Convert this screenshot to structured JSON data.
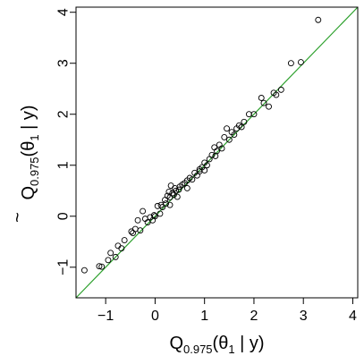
{
  "chart_data": {
    "type": "scatter",
    "title": "",
    "xlabel": {
      "base": "Q",
      "sub": "0.975",
      "rest": "(θ",
      "sub2": "1",
      "tail": " | y)"
    },
    "ylabel": {
      "base": "Q",
      "accent": "~",
      "sub": "0.975",
      "rest": "(θ",
      "sub2": "1",
      "tail": " | y)"
    },
    "xlim": [
      -1.6,
      4.1
    ],
    "ylim": [
      -1.6,
      4.1
    ],
    "xticks": [
      -1,
      0,
      1,
      2,
      3,
      4
    ],
    "yticks": [
      -1,
      0,
      1,
      2,
      3,
      4
    ],
    "xtick_labels": [
      "−1",
      "0",
      "1",
      "2",
      "3",
      "4"
    ],
    "ytick_labels": [
      "−1",
      "0",
      "1",
      "2",
      "3",
      "4"
    ],
    "reference_line": {
      "slope": 1,
      "intercept": 0,
      "color": "#2ca02c"
    },
    "point_color": "#000000",
    "points": [
      [
        -1.43,
        -1.06
      ],
      [
        -1.13,
        -0.98
      ],
      [
        -1.08,
        -0.99
      ],
      [
        -0.95,
        -0.86
      ],
      [
        -0.9,
        -0.72
      ],
      [
        -0.8,
        -0.8
      ],
      [
        -0.75,
        -0.58
      ],
      [
        -0.68,
        -0.63
      ],
      [
        -0.62,
        -0.47
      ],
      [
        -0.48,
        -0.3
      ],
      [
        -0.45,
        -0.33
      ],
      [
        -0.4,
        -0.25
      ],
      [
        -0.35,
        -0.08
      ],
      [
        -0.3,
        -0.28
      ],
      [
        -0.25,
        0.1
      ],
      [
        -0.2,
        -0.05
      ],
      [
        -0.15,
        -0.12
      ],
      [
        -0.1,
        -0.02
      ],
      [
        -0.05,
        -0.08
      ],
      [
        0.0,
        0.0
      ],
      [
        0.05,
        0.2
      ],
      [
        0.1,
        0.05
      ],
      [
        0.15,
        0.18
      ],
      [
        0.2,
        0.32
      ],
      [
        0.22,
        0.25
      ],
      [
        0.25,
        0.4
      ],
      [
        0.28,
        0.48
      ],
      [
        0.3,
        0.37
      ],
      [
        0.32,
        0.6
      ],
      [
        0.35,
        0.45
      ],
      [
        0.38,
        0.42
      ],
      [
        0.4,
        0.55
      ],
      [
        0.45,
        0.38
      ],
      [
        0.48,
        0.52
      ],
      [
        0.5,
        0.58
      ],
      [
        0.55,
        0.62
      ],
      [
        0.6,
        0.65
      ],
      [
        0.65,
        0.7
      ],
      [
        0.7,
        0.75
      ],
      [
        0.75,
        0.72
      ],
      [
        0.8,
        0.85
      ],
      [
        0.85,
        0.8
      ],
      [
        0.9,
        0.92
      ],
      [
        0.95,
        0.96
      ],
      [
        1.0,
        1.05
      ],
      [
        1.05,
        1.0
      ],
      [
        1.1,
        1.12
      ],
      [
        1.15,
        1.2
      ],
      [
        1.2,
        1.35
      ],
      [
        1.25,
        1.28
      ],
      [
        1.3,
        1.4
      ],
      [
        1.35,
        1.33
      ],
      [
        1.4,
        1.55
      ],
      [
        1.45,
        1.72
      ],
      [
        1.5,
        1.5
      ],
      [
        1.55,
        1.65
      ],
      [
        1.6,
        1.6
      ],
      [
        1.65,
        1.72
      ],
      [
        1.7,
        1.78
      ],
      [
        1.75,
        1.75
      ],
      [
        1.8,
        1.85
      ],
      [
        1.9,
        2.0
      ],
      [
        2.0,
        2.0
      ],
      [
        2.15,
        2.32
      ],
      [
        2.2,
        2.22
      ],
      [
        2.3,
        2.15
      ],
      [
        2.4,
        2.42
      ],
      [
        2.45,
        2.38
      ],
      [
        2.55,
        2.48
      ],
      [
        2.75,
        3.0
      ],
      [
        2.95,
        3.02
      ],
      [
        3.3,
        3.85
      ],
      [
        0.12,
        0.22
      ],
      [
        -0.02,
        0.02
      ],
      [
        0.65,
        0.55
      ],
      [
        1.0,
        0.9
      ],
      [
        0.42,
        0.5
      ],
      [
        0.9,
        0.88
      ],
      [
        1.22,
        1.18
      ],
      [
        0.3,
        0.22
      ]
    ]
  }
}
